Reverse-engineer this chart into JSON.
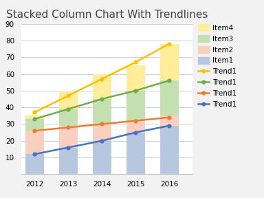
{
  "title": "Stacked Column Chart With Trendlines",
  "years": [
    2012,
    2013,
    2014,
    2015,
    2016
  ],
  "item1": [
    12,
    16,
    20,
    25,
    29
  ],
  "item2": [
    14,
    13,
    10,
    7,
    6
  ],
  "item3": [
    7,
    10,
    15,
    18,
    21
  ],
  "item4": [
    2,
    10,
    15,
    15,
    22
  ],
  "trend_blue": [
    12,
    16,
    20,
    25,
    29
  ],
  "trend_orange": [
    26,
    28,
    30,
    32,
    34
  ],
  "trend_green": [
    33,
    39,
    45,
    50,
    56
  ],
  "trend_yellow": [
    37,
    47,
    57,
    67,
    78
  ],
  "colors": {
    "item1": "#b8c7e0",
    "item2": "#f9cfc0",
    "item3": "#c5e0b0",
    "item4": "#ffed99",
    "trend_blue": "#4472c4",
    "trend_orange": "#ed7d31",
    "trend_green": "#70ad47",
    "trend_yellow": "#ffc000"
  },
  "ylim": [
    0,
    90
  ],
  "yticks": [
    0,
    10,
    20,
    30,
    40,
    50,
    60,
    70,
    80,
    90
  ],
  "bar_width": 0.55,
  "background_color": "#f2f2f2",
  "plot_bg": "#ffffff",
  "grid_color": "#d0d0d0",
  "title_fontsize": 11,
  "legend_fontsize": 7.5
}
